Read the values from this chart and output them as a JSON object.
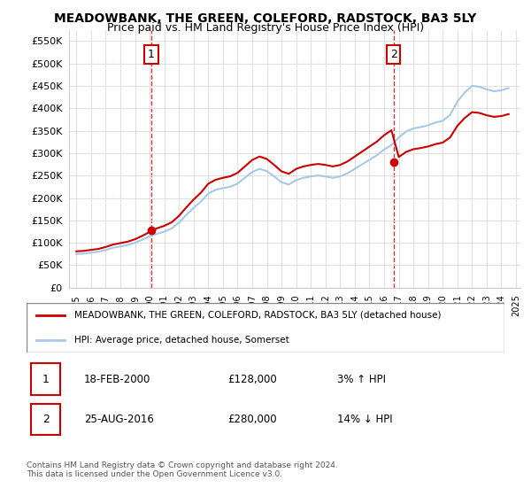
{
  "title": "MEADOWBANK, THE GREEN, COLEFORD, RADSTOCK, BA3 5LY",
  "subtitle": "Price paid vs. HM Land Registry's House Price Index (HPI)",
  "ylabel_values": [
    "£0",
    "£50K",
    "£100K",
    "£150K",
    "£200K",
    "£250K",
    "£300K",
    "£350K",
    "£400K",
    "£450K",
    "£500K",
    "£550K"
  ],
  "y_ticks": [
    0,
    50000,
    100000,
    150000,
    200000,
    250000,
    300000,
    350000,
    400000,
    450000,
    500000,
    550000
  ],
  "ylim": [
    0,
    575000
  ],
  "x_start_year": 1995,
  "x_end_year": 2025,
  "purchase1_date": 2000.12,
  "purchase1_price": 128000,
  "purchase1_label": "1",
  "purchase2_date": 2016.65,
  "purchase2_price": 280000,
  "purchase2_label": "2",
  "hpi_color": "#a8c8e8",
  "price_color": "#cc0000",
  "vline_color": "#cc0000",
  "legend_line1": "MEADOWBANK, THE GREEN, COLEFORD, RADSTOCK, BA3 5LY (detached house)",
  "legend_line2": "HPI: Average price, detached house, Somerset",
  "table_row1": [
    "1",
    "18-FEB-2000",
    "£128,000",
    "3% ↑ HPI"
  ],
  "table_row2": [
    "2",
    "25-AUG-2016",
    "£280,000",
    "14% ↓ HPI"
  ],
  "footer": "Contains HM Land Registry data © Crown copyright and database right 2024.\nThis data is licensed under the Open Government Licence v3.0.",
  "background_color": "#ffffff",
  "grid_color": "#e0e0e0"
}
